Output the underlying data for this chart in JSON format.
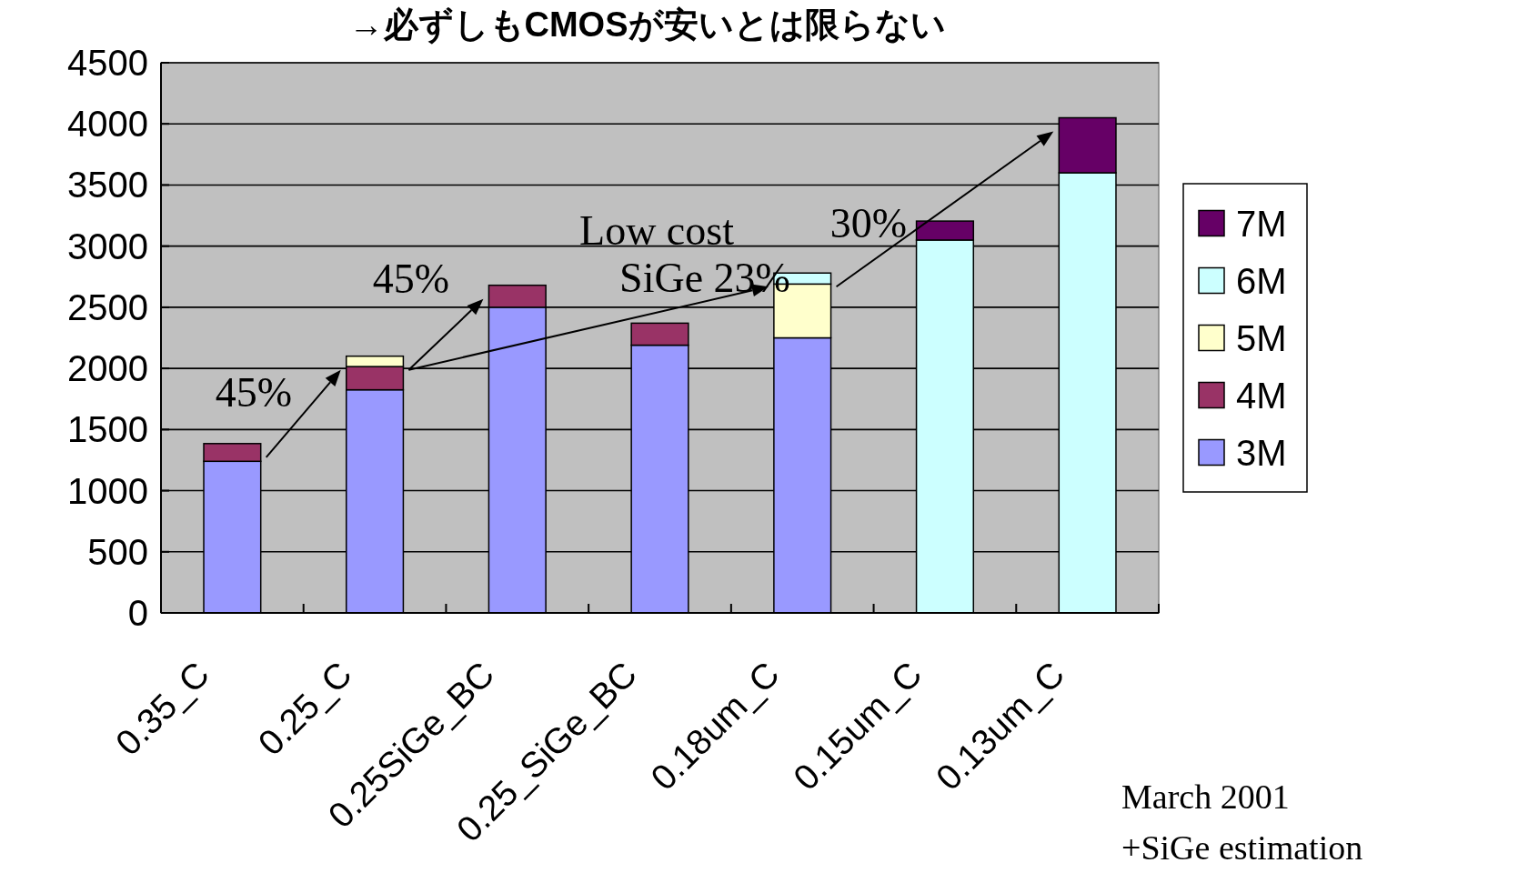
{
  "chart_data": {
    "type": "bar",
    "title": "→必ずしもCMOSが安いとは限らない",
    "categories": [
      "0.35_C",
      "0.25_C",
      "0.25SiGe_BC",
      "0.25_SiGe_BC",
      "0.18um_C",
      "0.15um_C",
      "0.13um_C"
    ],
    "stacked": true,
    "series": [
      {
        "name": "3M",
        "color": "#9999ff",
        "values": [
          1240,
          1825,
          2500,
          2190,
          2250,
          null,
          null
        ]
      },
      {
        "name": "4M",
        "color": "#993366",
        "values": [
          145,
          190,
          180,
          180,
          null,
          null,
          null
        ]
      },
      {
        "name": "5M",
        "color": "#ffffcc",
        "values": [
          null,
          85,
          null,
          null,
          440,
          null,
          null
        ]
      },
      {
        "name": "6M",
        "color": "#ccffff",
        "values": [
          null,
          null,
          null,
          null,
          90,
          3050,
          3600
        ]
      },
      {
        "name": "7M",
        "color": "#660066",
        "values": [
          null,
          null,
          null,
          null,
          null,
          155,
          450
        ]
      }
    ],
    "ylim": [
      0,
      4500
    ],
    "yticks": [
      0,
      500,
      1000,
      1500,
      2000,
      2500,
      3000,
      3500,
      4000,
      4500
    ],
    "grid": "y",
    "legend": "right",
    "annotations": [
      "45%",
      "45%",
      "Low cost",
      "SiGe 23%",
      "30%",
      "March 2001",
      "+SiGe estimation"
    ]
  }
}
